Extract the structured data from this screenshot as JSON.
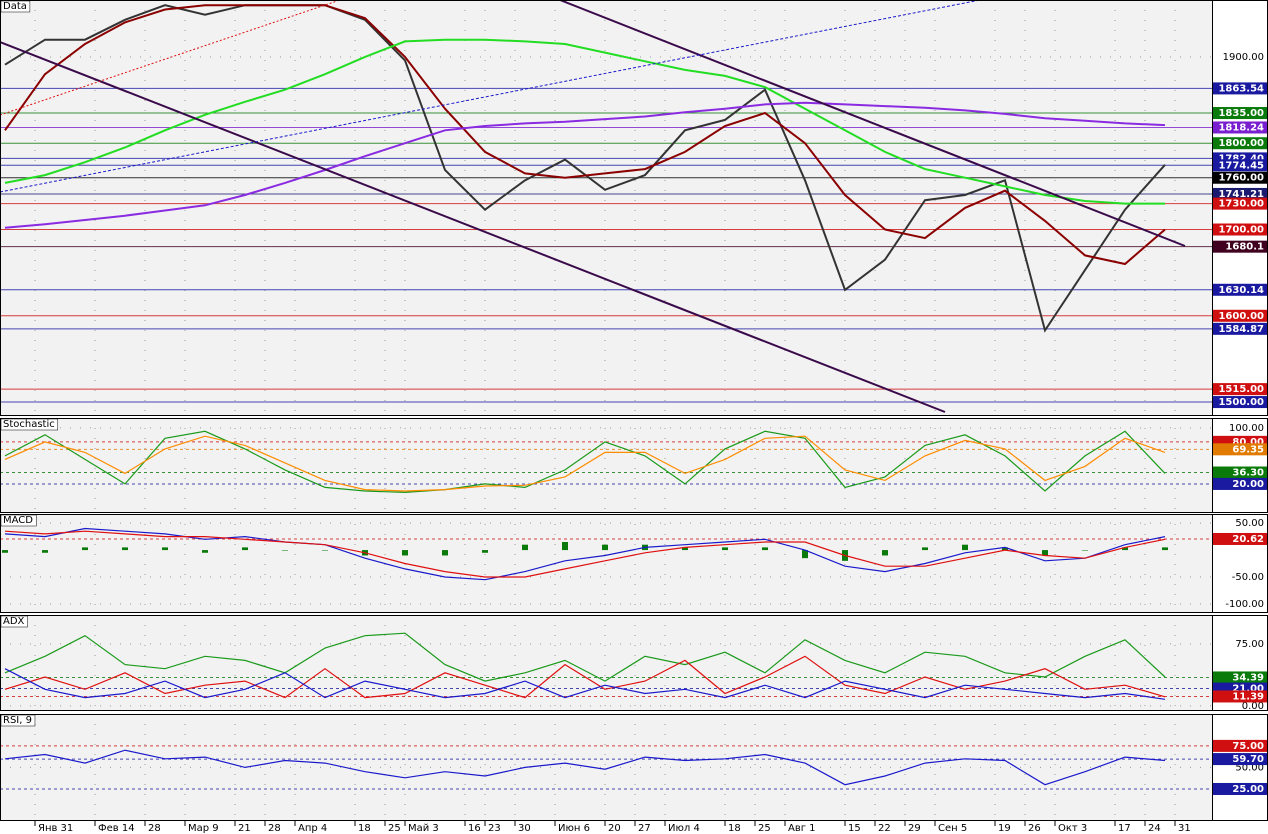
{
  "chart_data": [
    {
      "type": "line",
      "title": "Data",
      "x": [
        0,
        4,
        8,
        12,
        16,
        20,
        24,
        28,
        32,
        36,
        40,
        44,
        48,
        52,
        56,
        60,
        64,
        68,
        72,
        76,
        80,
        84,
        88,
        92,
        96,
        100,
        104,
        108,
        112,
        116
      ],
      "xlim": [
        -0.5,
        120.7
      ],
      "ylim": [
        1485,
        1966
      ],
      "yticks": [
        {
          "value": 1900,
          "label": "1900.00"
        }
      ],
      "levels": [
        {
          "value": 1863.54,
          "label": "1863.54",
          "color": "#1a1aa0"
        },
        {
          "value": 1835,
          "label": "1835.00",
          "color": "#0a7a0a"
        },
        {
          "value": 1818.24,
          "label": "1818.24",
          "color": "#7a1fd0"
        },
        {
          "value": 1800,
          "label": "1800.00",
          "color": "#0a7a0a"
        },
        {
          "value": 1782.4,
          "label": "1782.40",
          "color": "#1a1aa0"
        },
        {
          "value": 1774.45,
          "label": "1774.45",
          "color": "#1a1aa0"
        },
        {
          "value": 1760,
          "label": "1760.00",
          "color": "#000000"
        },
        {
          "value": 1741.21,
          "label": "1741.21",
          "color": "#1a1a70"
        },
        {
          "value": 1730,
          "label": "1730.00",
          "color": "#d01010"
        },
        {
          "value": 1700,
          "label": "1700.00",
          "color": "#d01010"
        },
        {
          "value": 1680.1,
          "label": "1680.1",
          "color": "#400020"
        },
        {
          "value": 1630.14,
          "label": "1630.14",
          "color": "#1a1aa0"
        },
        {
          "value": 1600,
          "label": "1600.00",
          "color": "#d01010"
        },
        {
          "value": 1584.87,
          "label": "1584.87",
          "color": "#1a1aa0"
        },
        {
          "value": 1515,
          "label": "1515.00",
          "color": "#d01010"
        },
        {
          "value": 1500,
          "label": "1500.00",
          "color": "#1a1aa0"
        }
      ],
      "series": [
        {
          "color": "#333333",
          "values": [
            1891,
            1920,
            1920,
            1943,
            1960,
            1949,
            1960,
            1960,
            1960,
            1943,
            1896,
            1769,
            1723,
            1757,
            1781,
            1746,
            1763,
            1815,
            1827,
            1862,
            1757,
            1630,
            1665,
            1734,
            1740,
            1757,
            1583,
            1653,
            1723,
            1775
          ]
        },
        {
          "color": "#8b0000",
          "values": [
            1815,
            1880,
            1915,
            1940,
            1955,
            1960,
            1960,
            1960,
            1960,
            1945,
            1900,
            1840,
            1790,
            1765,
            1760,
            1765,
            1770,
            1790,
            1820,
            1835,
            1800,
            1740,
            1700,
            1690,
            1725,
            1745,
            1710,
            1670,
            1660,
            1700
          ]
        },
        {
          "color": "#22dd22",
          "values": [
            1754,
            1763,
            1778,
            1795,
            1815,
            1833,
            1848,
            1862,
            1880,
            1900,
            1918,
            1920,
            1920,
            1918,
            1915,
            1905,
            1895,
            1885,
            1878,
            1865,
            1840,
            1815,
            1790,
            1770,
            1760,
            1750,
            1740,
            1733,
            1730,
            1730
          ]
        },
        {
          "color": "#8a2be2",
          "values": [
            1702,
            1706,
            1711,
            1716,
            1722,
            1728,
            1740,
            1754,
            1769,
            1785,
            1800,
            1815,
            1820,
            1823,
            1825,
            1828,
            1831,
            1836,
            1840,
            1845,
            1847,
            1845,
            1843,
            1841,
            1838,
            1834,
            1829,
            1826,
            1823,
            1821
          ]
        }
      ]
    },
    {
      "type": "line",
      "title": "Stochastic",
      "x": [
        0,
        4,
        8,
        12,
        16,
        20,
        24,
        28,
        32,
        36,
        40,
        44,
        48,
        52,
        56,
        60,
        64,
        68,
        72,
        76,
        80,
        84,
        88,
        92,
        96,
        100,
        104,
        108,
        112,
        116
      ],
      "xlim": [
        -0.5,
        120.7
      ],
      "ylim": [
        -20,
        114
      ],
      "yticks": [
        {
          "value": 100,
          "label": "100.00"
        }
      ],
      "levels": [
        {
          "value": 80,
          "label": "80.00",
          "color": "#d01010"
        },
        {
          "value": 69.35,
          "label": "69.35",
          "color": "#e07a00"
        },
        {
          "value": 36.3,
          "label": "36.30",
          "color": "#0a7a0a"
        },
        {
          "value": 20,
          "label": "20.00",
          "color": "#1a1aa0"
        }
      ],
      "series": [
        {
          "color": "#1a9a1a",
          "values": [
            60,
            90,
            55,
            20,
            85,
            95,
            70,
            40,
            15,
            10,
            8,
            12,
            20,
            15,
            40,
            80,
            60,
            20,
            70,
            95,
            85,
            15,
            30,
            75,
            90,
            60,
            10,
            60,
            95,
            35
          ]
        },
        {
          "color": "#ff8c00",
          "values": [
            55,
            80,
            65,
            35,
            70,
            88,
            75,
            50,
            25,
            12,
            10,
            12,
            17,
            18,
            30,
            65,
            65,
            35,
            55,
            85,
            88,
            40,
            25,
            60,
            82,
            70,
            25,
            45,
            85,
            65
          ]
        }
      ]
    },
    {
      "type": "line",
      "title": "MACD",
      "x": [
        0,
        4,
        8,
        12,
        16,
        20,
        24,
        28,
        32,
        36,
        40,
        44,
        48,
        52,
        56,
        60,
        64,
        68,
        72,
        76,
        80,
        84,
        88,
        92,
        96,
        100,
        104,
        108,
        112,
        116
      ],
      "xlim": [
        -0.5,
        120.7
      ],
      "ylim": [
        -115,
        67
      ],
      "yticks": [
        {
          "value": 50,
          "label": "50.00"
        },
        {
          "value": -50,
          "label": "-50.00"
        },
        {
          "value": -100,
          "label": "-100.00"
        }
      ],
      "levels": [
        {
          "value": 20.62,
          "label": "20.62",
          "color": "#d01010"
        }
      ],
      "series": [
        {
          "type": "bar",
          "color": "#0a7a0a",
          "values": [
            -5,
            -5,
            5,
            5,
            5,
            -5,
            5,
            0,
            0,
            -10,
            -10,
            -10,
            -5,
            10,
            15,
            10,
            10,
            5,
            5,
            5,
            -15,
            -20,
            -10,
            5,
            10,
            5,
            -10,
            0,
            5,
            5
          ]
        },
        {
          "color": "#1a1acc",
          "values": [
            30,
            25,
            40,
            35,
            30,
            20,
            25,
            15,
            10,
            -15,
            -35,
            -50,
            -55,
            -40,
            -20,
            -10,
            5,
            10,
            15,
            20,
            0,
            -30,
            -40,
            -25,
            -5,
            5,
            -20,
            -15,
            10,
            25
          ]
        },
        {
          "color": "#e01010",
          "values": [
            35,
            30,
            35,
            30,
            25,
            25,
            20,
            15,
            10,
            -5,
            -25,
            -40,
            -50,
            -50,
            -35,
            -20,
            -5,
            5,
            10,
            15,
            15,
            -10,
            -30,
            -30,
            -15,
            0,
            -10,
            -15,
            5,
            20
          ]
        }
      ]
    },
    {
      "type": "line",
      "title": "ADX",
      "x": [
        0,
        4,
        8,
        12,
        16,
        20,
        24,
        28,
        32,
        36,
        40,
        44,
        48,
        52,
        56,
        60,
        64,
        68,
        72,
        76,
        80,
        84,
        88,
        92,
        96,
        100,
        104,
        108,
        112,
        116
      ],
      "xlim": [
        -0.5,
        120.7
      ],
      "ylim": [
        -5,
        110
      ],
      "yticks": [
        {
          "value": 75,
          "label": "75.00"
        },
        {
          "value": 0,
          "label": "0.00"
        }
      ],
      "levels": [
        {
          "value": 34.39,
          "label": "34.39",
          "color": "#0a7a0a"
        },
        {
          "value": 21,
          "label": "21.00",
          "color": "#1a1aa0"
        },
        {
          "value": 11.39,
          "label": "11.39",
          "color": "#d01010"
        }
      ],
      "series": [
        {
          "color": "#1a9a1a",
          "values": [
            40,
            60,
            85,
            50,
            45,
            60,
            55,
            40,
            70,
            85,
            88,
            50,
            30,
            40,
            55,
            30,
            60,
            50,
            65,
            40,
            80,
            55,
            40,
            65,
            60,
            40,
            35,
            60,
            80,
            35
          ]
        },
        {
          "color": "#e01010",
          "values": [
            20,
            35,
            20,
            40,
            15,
            25,
            30,
            10,
            45,
            10,
            15,
            40,
            25,
            10,
            50,
            20,
            30,
            55,
            15,
            35,
            60,
            25,
            15,
            35,
            20,
            30,
            45,
            20,
            25,
            11
          ]
        },
        {
          "color": "#1a1acc",
          "values": [
            45,
            20,
            10,
            15,
            30,
            10,
            20,
            40,
            10,
            30,
            20,
            10,
            15,
            30,
            10,
            25,
            15,
            20,
            10,
            25,
            10,
            30,
            20,
            10,
            25,
            20,
            15,
            10,
            15,
            8
          ]
        }
      ]
    },
    {
      "type": "line",
      "title": "RSI, 9",
      "x": [
        0,
        4,
        8,
        12,
        16,
        20,
        24,
        28,
        32,
        36,
        40,
        44,
        48,
        52,
        56,
        60,
        64,
        68,
        72,
        76,
        80,
        84,
        88,
        92,
        96,
        100,
        104,
        108,
        112,
        116
      ],
      "xlim": [
        -0.5,
        120.7
      ],
      "ylim": [
        -11,
        112
      ],
      "yticks": [
        {
          "value": 50,
          "label": "50.00"
        }
      ],
      "levels": [
        {
          "value": 75,
          "label": "75.00",
          "color": "#d01010"
        },
        {
          "value": 59.7,
          "label": "59.70",
          "color": "#1a1aa0"
        },
        {
          "value": 25,
          "label": "25.00",
          "color": "#1a1aa0"
        }
      ],
      "series": [
        {
          "color": "#1a1acc",
          "values": [
            60,
            65,
            55,
            70,
            60,
            62,
            50,
            58,
            55,
            45,
            38,
            45,
            40,
            50,
            55,
            48,
            62,
            58,
            60,
            65,
            55,
            30,
            40,
            55,
            60,
            58,
            30,
            45,
            62,
            58
          ]
        }
      ],
      "xticks": [
        {
          "value": 3,
          "label": "Янв 31"
        },
        {
          "value": 9,
          "label": "Фев 14"
        },
        {
          "value": 14,
          "label": "28"
        },
        {
          "value": 18,
          "label": "Мар 9"
        },
        {
          "value": 23,
          "label": "21"
        },
        {
          "value": 26,
          "label": "28"
        },
        {
          "value": 29,
          "label": "Апр 4"
        },
        {
          "value": 35,
          "label": "18"
        },
        {
          "value": 38,
          "label": "25"
        },
        {
          "value": 40,
          "label": "Май 3"
        },
        {
          "value": 46,
          "label": "16"
        },
        {
          "value": 48,
          "label": "23"
        },
        {
          "value": 51,
          "label": "30"
        },
        {
          "value": 55,
          "label": "Июн 6"
        },
        {
          "value": 60,
          "label": "20"
        },
        {
          "value": 63,
          "label": "27"
        },
        {
          "value": 66,
          "label": "Июл 4"
        },
        {
          "value": 72,
          "label": "18"
        },
        {
          "value": 75,
          "label": "25"
        },
        {
          "value": 78,
          "label": "Авг 1"
        },
        {
          "value": 84,
          "label": "15"
        },
        {
          "value": 87,
          "label": "22"
        },
        {
          "value": 90,
          "label": "29"
        },
        {
          "value": 93,
          "label": "Сен 5"
        },
        {
          "value": 99,
          "label": "19"
        },
        {
          "value": 102,
          "label": "26"
        },
        {
          "value": 105,
          "label": "Окт 3"
        },
        {
          "value": 111,
          "label": "17"
        },
        {
          "value": 114,
          "label": "24"
        },
        {
          "value": 117,
          "label": "31"
        }
      ]
    }
  ]
}
